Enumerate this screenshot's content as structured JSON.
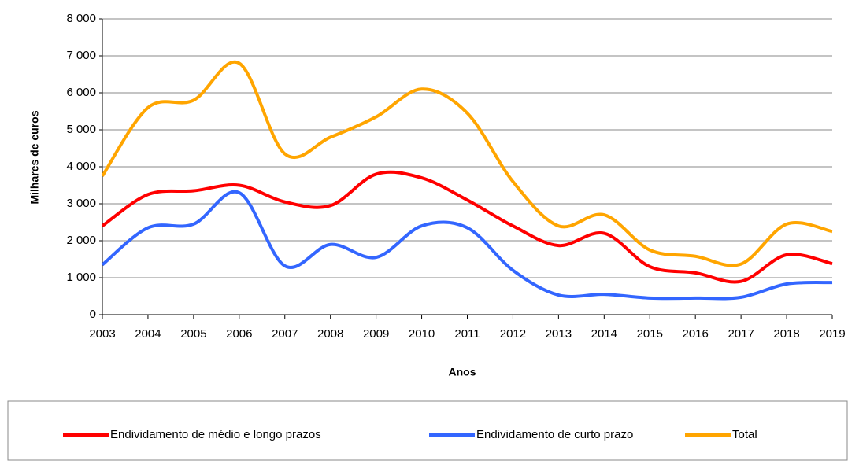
{
  "chart_data": {
    "type": "line",
    "x_label": "Anos",
    "y_label": "Milhares de euros",
    "x": [
      2003,
      2004,
      2005,
      2006,
      2007,
      2008,
      2009,
      2010,
      2011,
      2012,
      2013,
      2014,
      2015,
      2016,
      2017,
      2018,
      2019
    ],
    "xlim": [
      2003,
      2019
    ],
    "xticks": [
      2003,
      2004,
      2005,
      2006,
      2007,
      2008,
      2009,
      2010,
      2011,
      2012,
      2013,
      2014,
      2015,
      2016,
      2017,
      2018,
      2019
    ],
    "ylim": [
      0,
      8000
    ],
    "yticks": [
      0,
      {
        "value": 1000,
        "label": "1 000"
      },
      {
        "value": 2000,
        "label": "2 000"
      },
      {
        "value": 3000,
        "label": "3 000"
      },
      {
        "value": 4000,
        "label": "4 000"
      },
      {
        "value": 5000,
        "label": "5 000"
      },
      {
        "value": 6000,
        "label": "6 000"
      },
      {
        "value": 7000,
        "label": "7 000"
      },
      {
        "value": 8000,
        "label": "8 000"
      }
    ],
    "grid": true,
    "legend": "bottom",
    "series": [
      {
        "name": "Endividamento de médio e longo prazos",
        "color": "#ff0000",
        "values": [
          2400,
          3250,
          3350,
          3500,
          3050,
          2950,
          3800,
          3700,
          3100,
          2400,
          1870,
          2200,
          1300,
          1130,
          900,
          1620,
          1380
        ]
      },
      {
        "name": "Endividamento de curto prazo",
        "color": "#3366ff",
        "values": [
          1350,
          2350,
          2450,
          3300,
          1320,
          1900,
          1550,
          2400,
          2350,
          1200,
          530,
          550,
          450,
          450,
          470,
          830,
          870
        ]
      },
      {
        "name": "Total",
        "color": "#ffa500",
        "values": [
          3750,
          5600,
          5800,
          6800,
          4350,
          4800,
          5350,
          6100,
          5450,
          3600,
          2400,
          2700,
          1750,
          1580,
          1370,
          2450,
          2250
        ]
      }
    ]
  }
}
